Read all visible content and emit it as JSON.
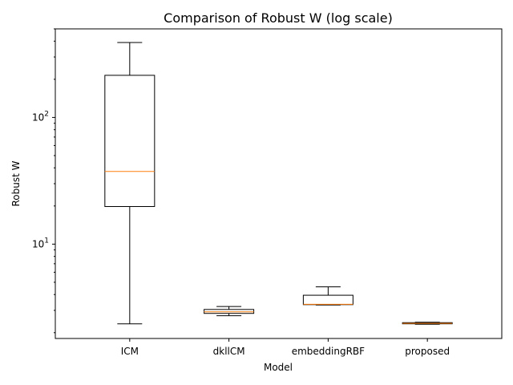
{
  "chart_data": {
    "type": "box",
    "title": "Comparison of Robust W (log scale)",
    "xlabel": "Model",
    "ylabel": "Robust W",
    "yscale": "log",
    "ylim": [
      1.8,
      500
    ],
    "y_major_ticks": [
      {
        "value": 10,
        "label": "10",
        "sup": "1"
      },
      {
        "value": 100,
        "label": "10",
        "sup": "2"
      }
    ],
    "grid": false,
    "median_color": "#ff7f0e",
    "box_color": "#000000",
    "categories": [
      "ICM",
      "dkllCM",
      "embeddingRBF",
      "proposed"
    ],
    "boxes": [
      {
        "name": "ICM",
        "whisker_low": 2.35,
        "q1": 19.8,
        "median": 37.5,
        "q3": 215,
        "whisker_high": 390
      },
      {
        "name": "dkllCM",
        "whisker_low": 2.72,
        "q1": 2.84,
        "median": 2.92,
        "q3": 3.05,
        "whisker_high": 3.22
      },
      {
        "name": "embeddingRBF",
        "whisker_low": 3.31,
        "q1": 3.33,
        "median": 3.35,
        "q3": 3.95,
        "whisker_high": 4.6
      },
      {
        "name": "proposed",
        "whisker_low": 2.33,
        "q1": 2.35,
        "median": 2.37,
        "q3": 2.4,
        "whisker_high": 2.42
      }
    ]
  }
}
